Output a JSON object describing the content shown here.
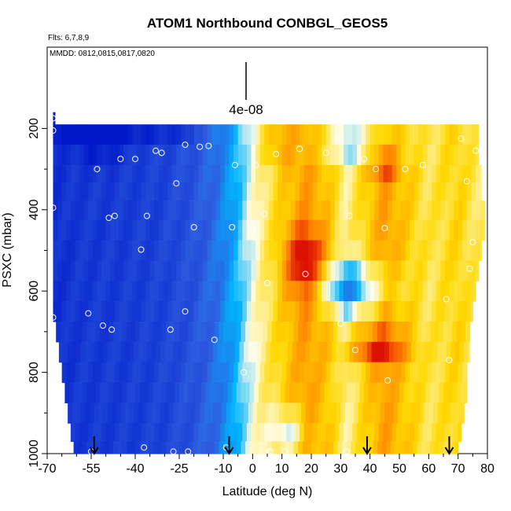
{
  "chart_data": {
    "type": "heatmap",
    "title": "ATOM1 Northbound CONBGL_GEOS5",
    "flights_label": "Flts: 6,7,8,9",
    "dates_label": "MMDD: 0812,0815,0817,0820",
    "xlabel": "Latitude (deg N)",
    "ylabel": "PSXC (mbar)",
    "xlim": [
      -70,
      80
    ],
    "ylim": [
      1000,
      0
    ],
    "x_ticks": [
      -70,
      -55,
      -40,
      -25,
      -10,
      0,
      10,
      20,
      30,
      40,
      50,
      60,
      70,
      80
    ],
    "x_minor_ticks": [
      -65,
      -60,
      -50,
      -45,
      -35,
      -30,
      -20,
      -15,
      -5,
      5,
      15,
      25,
      35,
      45,
      55,
      65,
      75
    ],
    "y_ticks": [
      200,
      400,
      600,
      800,
      1000
    ],
    "y_minor_ticks": [
      300,
      500,
      700,
      900
    ],
    "scale_bar_label": "4e-08",
    "pressure_levels": [
      210,
      270,
      310,
      355,
      400,
      450,
      500,
      550,
      600,
      650,
      700,
      750,
      800,
      850,
      900,
      950,
      990
    ],
    "latitude_edges_south": [
      -68,
      -68,
      -68,
      -68,
      -68,
      -68,
      -68,
      -68,
      -68,
      -68,
      -67,
      -66,
      -65,
      -64,
      -63,
      -62,
      -61
    ],
    "latitude_edges_north": [
      77,
      77,
      78,
      78,
      79,
      79,
      78,
      77,
      76,
      75,
      74,
      74,
      73,
      73,
      72,
      71,
      70
    ],
    "anomaly_profile": [
      {
        "lat": -68,
        "v": -0.85
      },
      {
        "lat": -60,
        "v": -0.8
      },
      {
        "lat": -50,
        "v": -0.78
      },
      {
        "lat": -40,
        "v": -0.76
      },
      {
        "lat": -30,
        "v": -0.72
      },
      {
        "lat": -20,
        "v": -0.62
      },
      {
        "lat": -12,
        "v": -0.48
      },
      {
        "lat": -6,
        "v": -0.28
      },
      {
        "lat": -2,
        "v": -0.08
      },
      {
        "lat": 3,
        "v": 0.12
      },
      {
        "lat": 10,
        "v": 0.32
      },
      {
        "lat": 18,
        "v": 0.5
      },
      {
        "lat": 26,
        "v": 0.35
      },
      {
        "lat": 32,
        "v": 0.1
      },
      {
        "lat": 38,
        "v": 0.3
      },
      {
        "lat": 45,
        "v": 0.5
      },
      {
        "lat": 52,
        "v": 0.35
      },
      {
        "lat": 60,
        "v": 0.2
      },
      {
        "lat": 70,
        "v": 0.3
      },
      {
        "lat": 78,
        "v": 0.15
      }
    ],
    "hotspots": [
      {
        "lat": 18,
        "p": 540,
        "dlat": 7,
        "dp": 90,
        "v": 0.55
      },
      {
        "lat": 42,
        "p": 740,
        "dlat": 10,
        "dp": 40,
        "v": 0.45
      },
      {
        "lat": 45,
        "p": 290,
        "dlat": 5,
        "dp": 30,
        "v": 0.35
      },
      {
        "lat": 8,
        "p": 240,
        "dlat": 6,
        "dp": 40,
        "v": 0.25
      },
      {
        "lat": -52,
        "p": 230,
        "dlat": 8,
        "dp": 50,
        "v": -0.3
      },
      {
        "lat": 35,
        "p": 240,
        "dlat": 15,
        "dp": 30,
        "v": -0.6
      },
      {
        "lat": 32,
        "p": 590,
        "dlat": 14,
        "dp": 60,
        "v": -0.55
      },
      {
        "lat": 12,
        "p": 950,
        "dlat": 6,
        "dp": 60,
        "v": -0.4
      }
    ],
    "sample_points": [
      {
        "lat": -68,
        "p": 175
      },
      {
        "lat": -68,
        "p": 205
      },
      {
        "lat": -68,
        "p": 395
      },
      {
        "lat": -68,
        "p": 665
      },
      {
        "lat": -56,
        "p": 655
      },
      {
        "lat": -55,
        "p": 995
      },
      {
        "lat": -53,
        "p": 300
      },
      {
        "lat": -49,
        "p": 420
      },
      {
        "lat": -47,
        "p": 415
      },
      {
        "lat": -51,
        "p": 685
      },
      {
        "lat": -48,
        "p": 695
      },
      {
        "lat": -45,
        "p": 275
      },
      {
        "lat": -40,
        "p": 275
      },
      {
        "lat": -38,
        "p": 498
      },
      {
        "lat": -37,
        "p": 985
      },
      {
        "lat": -36,
        "p": 415
      },
      {
        "lat": -33,
        "p": 255
      },
      {
        "lat": -31,
        "p": 260
      },
      {
        "lat": -28,
        "p": 695
      },
      {
        "lat": -27,
        "p": 995
      },
      {
        "lat": -26,
        "p": 335
      },
      {
        "lat": -23,
        "p": 240
      },
      {
        "lat": -23,
        "p": 650
      },
      {
        "lat": -22,
        "p": 995
      },
      {
        "lat": -20,
        "p": 443
      },
      {
        "lat": -18,
        "p": 245
      },
      {
        "lat": -15,
        "p": 243
      },
      {
        "lat": -13,
        "p": 720
      },
      {
        "lat": -9,
        "p": 985
      },
      {
        "lat": -7,
        "p": 443
      },
      {
        "lat": -6,
        "p": 290
      },
      {
        "lat": -3,
        "p": 800
      },
      {
        "lat": 0,
        "p": 450
      },
      {
        "lat": 1,
        "p": 290
      },
      {
        "lat": 4,
        "p": 410
      },
      {
        "lat": 5,
        "p": 580
      },
      {
        "lat": 6,
        "p": 995
      },
      {
        "lat": 8,
        "p": 263
      },
      {
        "lat": 11,
        "p": 995
      },
      {
        "lat": 16,
        "p": 250
      },
      {
        "lat": 18,
        "p": 558
      },
      {
        "lat": 25,
        "p": 260
      },
      {
        "lat": 29,
        "p": 225
      },
      {
        "lat": 30,
        "p": 680
      },
      {
        "lat": 32,
        "p": 995
      },
      {
        "lat": 33,
        "p": 415
      },
      {
        "lat": 35,
        "p": 745
      },
      {
        "lat": 38,
        "p": 275
      },
      {
        "lat": 42,
        "p": 300
      },
      {
        "lat": 45,
        "p": 445
      },
      {
        "lat": 46,
        "p": 820
      },
      {
        "lat": 52,
        "p": 300
      },
      {
        "lat": 58,
        "p": 290
      },
      {
        "lat": 66,
        "p": 620
      },
      {
        "lat": 67,
        "p": 770
      },
      {
        "lat": 71,
        "p": 225
      },
      {
        "lat": 73,
        "p": 330
      },
      {
        "lat": 74,
        "p": 545
      },
      {
        "lat": 75,
        "p": 480
      },
      {
        "lat": 76,
        "p": 255
      }
    ],
    "arrows_lat": [
      -54,
      -8,
      39,
      67
    ],
    "colors": {
      "deep_blue": "#0018c8",
      "blue": "#2e5ee0",
      "cyan": "#00b4ff",
      "pale": "#fffde8",
      "yellow": "#ffd800",
      "orange": "#ff8000",
      "red": "#dd1100"
    }
  }
}
